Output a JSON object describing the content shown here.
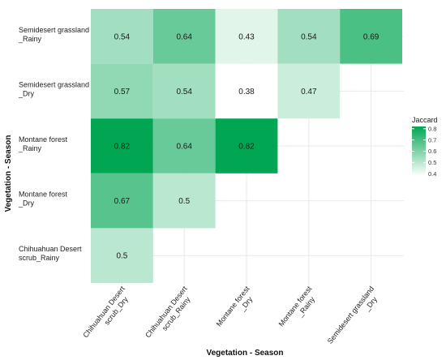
{
  "chart_data": {
    "type": "heatmap",
    "x_categories": [
      "Chihuahuan Desert scrub_Dry",
      "Chihuahuan Desert scrub_Rainy",
      "Montane forest _Dry",
      "Montane forest _Rainy",
      "Semidesert grassland _Dry"
    ],
    "x_tick_lines": [
      [
        "Chihuahuan Desert",
        "scrub_Dry"
      ],
      [
        "Chihuahuan Desert",
        "scrub_Rainy"
      ],
      [
        "Montane forest",
        "_Dry"
      ],
      [
        "Montane forest",
        "_Rainy"
      ],
      [
        "Semidesert grassland",
        "_Dry"
      ]
    ],
    "y_categories": [
      "Semidesert grassland _Rainy",
      "Semidesert grassland _Dry",
      "Montane forest _Rainy",
      "Montane forest _Dry",
      "Chihuahuan Desert scrub_Rainy"
    ],
    "y_tick_lines": [
      [
        "Semidesert grassland",
        "_Rainy"
      ],
      [
        "Semidesert grassland",
        "_Dry"
      ],
      [
        "Montane forest",
        "_Rainy"
      ],
      [
        "Montane forest",
        "_Dry"
      ],
      [
        "Chihuahuan Desert",
        "scrub_Rainy"
      ]
    ],
    "cells": [
      {
        "x": 0,
        "y": 0,
        "value": 0.54,
        "label": "0.54"
      },
      {
        "x": 1,
        "y": 0,
        "value": 0.64,
        "label": "0.64"
      },
      {
        "x": 2,
        "y": 0,
        "value": 0.43,
        "label": "0.43"
      },
      {
        "x": 3,
        "y": 0,
        "value": 0.54,
        "label": "0.54"
      },
      {
        "x": 4,
        "y": 0,
        "value": 0.69,
        "label": "0.69"
      },
      {
        "x": 0,
        "y": 1,
        "value": 0.57,
        "label": "0.57"
      },
      {
        "x": 1,
        "y": 1,
        "value": 0.54,
        "label": "0.54"
      },
      {
        "x": 2,
        "y": 1,
        "value": 0.38,
        "label": "0.38"
      },
      {
        "x": 3,
        "y": 1,
        "value": 0.47,
        "label": "0.47"
      },
      {
        "x": 0,
        "y": 2,
        "value": 0.82,
        "label": "0.82"
      },
      {
        "x": 1,
        "y": 2,
        "value": 0.64,
        "label": "0.64"
      },
      {
        "x": 2,
        "y": 2,
        "value": 0.82,
        "label": "0.82"
      },
      {
        "x": 0,
        "y": 3,
        "value": 0.67,
        "label": "0.67"
      },
      {
        "x": 1,
        "y": 3,
        "value": 0.5,
        "label": "0.5"
      },
      {
        "x": 0,
        "y": 4,
        "value": 0.5,
        "label": "0.5"
      }
    ],
    "xlabel": "Vegetation - Season",
    "ylabel": "Vegetation - Season",
    "legend": {
      "title": "Jaccard",
      "position": "right",
      "range": [
        0.38,
        0.82
      ],
      "ticks": [
        {
          "value": 0.8,
          "label": "0.8"
        },
        {
          "value": 0.7,
          "label": "0.7"
        },
        {
          "value": 0.6,
          "label": "0.6"
        },
        {
          "value": 0.5,
          "label": "0.5"
        },
        {
          "value": 0.4,
          "label": "0.4"
        }
      ]
    },
    "colors": {
      "low": "#ffffff",
      "high": "#00a652"
    },
    "grid": true
  }
}
